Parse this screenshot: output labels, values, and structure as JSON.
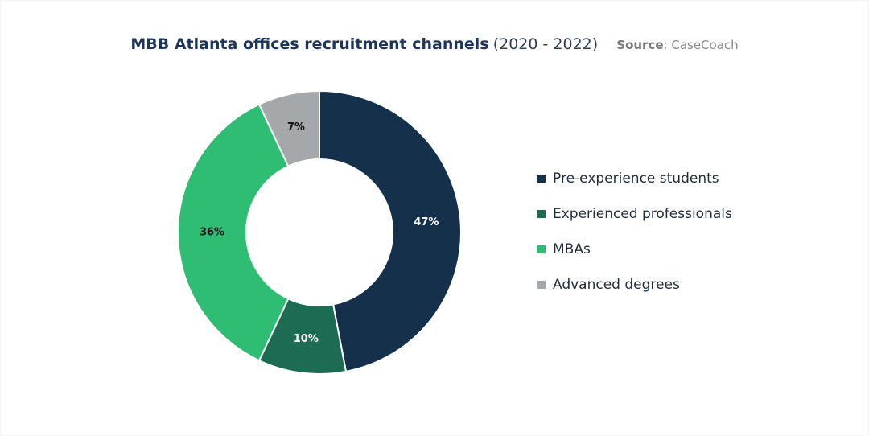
{
  "title": {
    "main": "MBB Atlanta offices recruitment channels",
    "years": "(2020 - 2022)",
    "source_label": "Source",
    "source_sep": ": ",
    "source_value": "CaseCoach"
  },
  "colors": {
    "pre_experience": "#14304a",
    "experienced": "#1e6b54",
    "mbas": "#2ebd73",
    "advanced": "#a5a8aa",
    "label_dark": "#111111",
    "label_light": "#ffffff"
  },
  "chart_data": {
    "type": "pie",
    "subtype": "donut",
    "title": "MBB Atlanta offices recruitment channels (2020 - 2022)",
    "source": "Source: CaseCoach",
    "legend_position": "right",
    "series": [
      {
        "name": "Pre-experience students",
        "value": 47,
        "label": "47%",
        "color": "#14304a",
        "label_color": "#ffffff"
      },
      {
        "name": "Experienced professionals",
        "value": 10,
        "label": "10%",
        "color": "#1e6b54",
        "label_color": "#ffffff"
      },
      {
        "name": "MBAs",
        "value": 36,
        "label": "36%",
        "color": "#2ebd73",
        "label_color": "#111111"
      },
      {
        "name": "Advanced degrees",
        "value": 7,
        "label": "7%",
        "color": "#a5a8aa",
        "label_color": "#111111"
      }
    ]
  }
}
